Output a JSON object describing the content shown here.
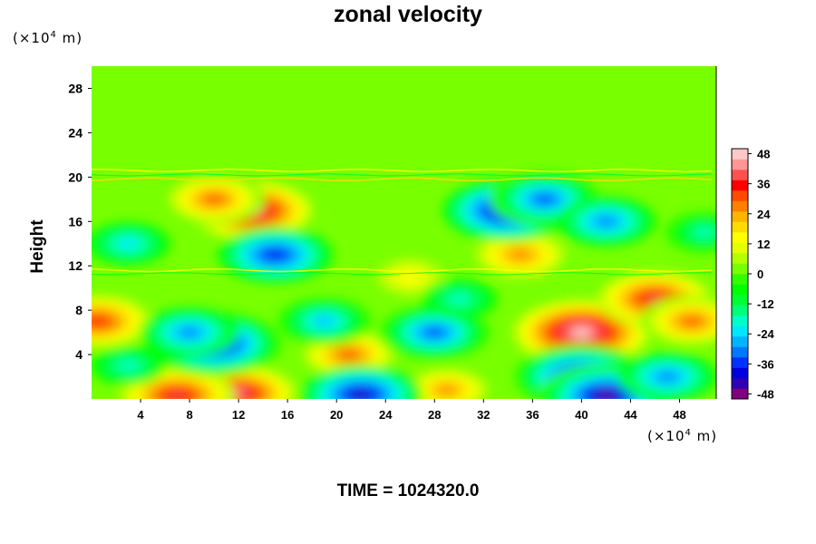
{
  "chart_data": {
    "type": "heatmap",
    "title": "zonal velocity",
    "ylabel": "Height",
    "xlabel": "",
    "x_unit": {
      "prefix": "(×10",
      "exp": "4",
      "suffix": " m)"
    },
    "y_unit": {
      "prefix": "(×10",
      "exp": "4",
      "suffix": " m)"
    },
    "xlim": [
      0,
      51
    ],
    "ylim": [
      0,
      30
    ],
    "x_ticks": [
      4,
      8,
      12,
      16,
      20,
      24,
      28,
      32,
      36,
      40,
      44,
      48
    ],
    "y_ticks": [
      4,
      8,
      12,
      16,
      20,
      24,
      28
    ],
    "colorbar": {
      "range": [
        -50,
        50
      ],
      "ticks": [
        48,
        36,
        24,
        12,
        0,
        -12,
        -24,
        -36,
        -48
      ],
      "colors": [
        "#7f007f",
        "#3200b4",
        "#0000dc",
        "#0032ff",
        "#0078ff",
        "#00b4ff",
        "#00e6ff",
        "#00ffc8",
        "#00ff78",
        "#00ff32",
        "#00ff00",
        "#32ff00",
        "#78ff00",
        "#b4ff00",
        "#e6ff00",
        "#ffff00",
        "#ffdc00",
        "#ffb400",
        "#ff7f00",
        "#ff4b00",
        "#ff0000",
        "#ff5050",
        "#ff9696",
        "#ffc8c8"
      ]
    },
    "background_value": 0,
    "features": [
      {
        "x": 40,
        "y": 6,
        "value": 50
      },
      {
        "x": 46,
        "y": 9,
        "value": 38
      },
      {
        "x": 49,
        "y": 7,
        "value": 32
      },
      {
        "x": 13,
        "y": 17,
        "value": 48
      },
      {
        "x": 10,
        "y": 18,
        "value": 32
      },
      {
        "x": 12,
        "y": 0.5,
        "value": 44
      },
      {
        "x": 7,
        "y": 0.3,
        "value": 38
      },
      {
        "x": 21,
        "y": 4,
        "value": 32
      },
      {
        "x": 29,
        "y": 0.8,
        "value": 28
      },
      {
        "x": 0.5,
        "y": 7,
        "value": 34
      },
      {
        "x": 35,
        "y": 13,
        "value": 26
      },
      {
        "x": 26,
        "y": 11,
        "value": 14
      },
      {
        "x": 10,
        "y": 5,
        "value": -48
      },
      {
        "x": 8,
        "y": 6,
        "value": -30
      },
      {
        "x": 40,
        "y": 2,
        "value": -48
      },
      {
        "x": 42,
        "y": 0.3,
        "value": -48
      },
      {
        "x": 47,
        "y": 2,
        "value": -30
      },
      {
        "x": 34,
        "y": 17,
        "value": -46
      },
      {
        "x": 37,
        "y": 18,
        "value": -36
      },
      {
        "x": 42,
        "y": 16,
        "value": -30
      },
      {
        "x": 15,
        "y": 13,
        "value": -38
      },
      {
        "x": 28,
        "y": 6,
        "value": -36
      },
      {
        "x": 19,
        "y": 7,
        "value": -28
      },
      {
        "x": 22,
        "y": 0.4,
        "value": -42
      },
      {
        "x": 3,
        "y": 14,
        "value": -22
      },
      {
        "x": 50,
        "y": 15,
        "value": -20
      },
      {
        "x": 30,
        "y": 9,
        "value": -18
      },
      {
        "x": 3,
        "y": 3,
        "value": -18
      }
    ]
  },
  "footer": {
    "time_label": "TIME = 1024320.0"
  }
}
